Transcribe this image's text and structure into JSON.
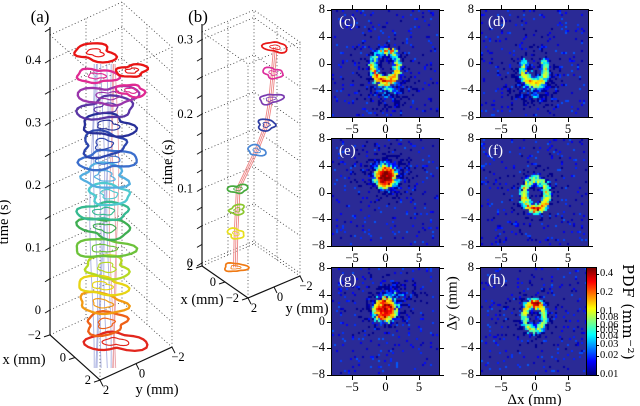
{
  "figure": {
    "background": "#ffffff",
    "heatmap_bg": "#2a2a96"
  },
  "chart_data": [
    {
      "id": "a",
      "type": "3d-contour-stack",
      "label": "(a)",
      "time_label": "time (s)",
      "x_label": "x (mm)",
      "y_label": "y (mm)",
      "time_ticks": [
        0,
        0.1,
        0.2,
        0.3,
        0.4
      ],
      "time_minor_step": 0.05,
      "time_range": [
        0,
        0.46
      ],
      "x_ticks": [
        -2,
        0,
        2
      ],
      "y_ticks": [
        2,
        0,
        -2
      ],
      "x_range": [
        -2,
        2
      ],
      "y_range": [
        -2,
        2
      ],
      "traj_colors": {
        "blue": "#a7afe0",
        "pink": "#e9a2a8"
      },
      "rings": [
        {
          "t": 0.005,
          "x": 0.35,
          "y": 0.0,
          "s": 1.0,
          "color": "#e2261d"
        },
        {
          "t": 0.035,
          "x": 0.1,
          "y": 0.35,
          "s": 0.92,
          "color": "#ee6017"
        },
        {
          "t": 0.065,
          "x": -0.05,
          "y": 0.45,
          "s": 0.95,
          "color": "#f29a12"
        },
        {
          "t": 0.095,
          "x": 0.0,
          "y": 0.5,
          "s": 0.9,
          "color": "#e7d414"
        },
        {
          "t": 0.125,
          "x": 0.15,
          "y": 0.35,
          "s": 0.95,
          "color": "#b5d922"
        },
        {
          "t": 0.155,
          "x": 0.05,
          "y": 0.45,
          "s": 1.0,
          "color": "#6cc23a"
        },
        {
          "t": 0.185,
          "x": 0.0,
          "y": 0.3,
          "s": 0.95,
          "color": "#3fae52"
        },
        {
          "t": 0.215,
          "x": 0.1,
          "y": 0.45,
          "s": 0.9,
          "color": "#35b990"
        },
        {
          "t": 0.24,
          "x": 0.15,
          "y": 0.2,
          "s": 0.88,
          "color": "#4fc9cf"
        },
        {
          "t": 0.268,
          "x": 0.0,
          "y": 0.35,
          "s": 1.0,
          "color": "#52aee0"
        },
        {
          "t": 0.295,
          "x": 0.1,
          "y": 0.25,
          "s": 1.0,
          "color": "#3b6ecc"
        },
        {
          "t": 0.32,
          "x": 0.0,
          "y": 0.4,
          "s": 1.0,
          "color": "#2c45ad"
        },
        {
          "t": 0.35,
          "x": 0.1,
          "y": 0.25,
          "s": 1.02,
          "color": "#272f98"
        },
        {
          "t": 0.378,
          "x": 0.1,
          "y": 0.3,
          "s": 1.05,
          "color": "#5a35a5"
        },
        {
          "t": 0.398,
          "x": 0.15,
          "y": 0.2,
          "s": 1.0,
          "color": "#9a35ab"
        },
        {
          "t": 0.412,
          "x": 0.95,
          "y": -0.45,
          "s": 0.55,
          "color": "#e02a92"
        },
        {
          "t": 0.425,
          "x": -0.35,
          "y": 0.55,
          "s": 0.72,
          "color": "#e02a92"
        },
        {
          "t": 0.443,
          "x": 0.95,
          "y": -0.5,
          "s": 0.58,
          "color": "#e81414"
        },
        {
          "t": 0.462,
          "x": -0.4,
          "y": 0.6,
          "s": 0.8,
          "color": "#e81414"
        }
      ]
    },
    {
      "id": "b",
      "type": "3d-contour-stack",
      "label": "(b)",
      "time_label": "time (s)",
      "x_label": "x (mm)",
      "y_label": "y (mm)",
      "time_ticks": [
        0,
        0.1,
        0.2,
        0.3
      ],
      "time_minor_step": 0.025,
      "time_range": [
        0,
        0.31
      ],
      "x_ticks": [
        2,
        0,
        -2
      ],
      "y_ticks": [
        2,
        0,
        -2
      ],
      "x_range": [
        -2,
        2
      ],
      "y_range": [
        -2,
        2
      ],
      "traj_colors": {
        "pink": "#ee8484"
      },
      "rings": [
        {
          "t": 0.0,
          "x": 0.8,
          "y": 0.5,
          "s": 1.0,
          "color": "#f07a14"
        },
        {
          "t": 0.045,
          "x": 0.8,
          "y": 0.45,
          "s": 0.9,
          "color": "#e7df1c"
        },
        {
          "t": 0.077,
          "x": 0.75,
          "y": 0.4,
          "s": 0.85,
          "color": "#8bc72e"
        },
        {
          "t": 0.105,
          "x": 0.72,
          "y": 0.35,
          "s": 0.9,
          "color": "#46a93c"
        },
        {
          "t": 0.155,
          "x": 0.2,
          "y": -0.6,
          "s": 0.95,
          "color": "#4a86d4"
        },
        {
          "t": 0.19,
          "x": -0.15,
          "y": -1.05,
          "s": 1.0,
          "color": "#2c3ba2"
        },
        {
          "t": 0.225,
          "x": -0.3,
          "y": -1.25,
          "s": 1.05,
          "color": "#7a3bb0"
        },
        {
          "t": 0.26,
          "x": -0.4,
          "y": -1.35,
          "s": 1.0,
          "color": "#dd2e9c"
        },
        {
          "t": 0.295,
          "x": -0.48,
          "y": -1.45,
          "s": 1.1,
          "color": "#e81717"
        }
      ]
    },
    {
      "id": "c",
      "type": "heatmap",
      "label": "(c)",
      "x_ticks": [
        -5,
        0,
        5
      ],
      "y_ticks": [
        8,
        4,
        0,
        -4,
        -8
      ],
      "range": [
        -8,
        8
      ],
      "clusters": [
        {
          "kind": "ring",
          "x": 0.0,
          "y": -0.4,
          "rx": 1.9,
          "ry": 2.3,
          "w": 0.18,
          "n": 680,
          "peak": 0.17,
          "base": 0.18,
          "peak_angle": 270
        },
        {
          "kind": "blob",
          "x": 0.5,
          "y": -3.9,
          "sx": 1.5,
          "sy": 1.3,
          "n": 230,
          "peak": 0.03
        },
        {
          "kind": "blob",
          "x": 0.4,
          "y": 1.8,
          "sx": 0.8,
          "sy": 0.35,
          "n": 26,
          "peak": 0.3
        },
        {
          "kind": "blob",
          "x": 0.0,
          "y": -1.2,
          "sx": 2.8,
          "sy": 2.8,
          "n": 130,
          "peak": 0.016
        }
      ]
    },
    {
      "id": "d",
      "type": "heatmap",
      "label": "(d)",
      "x_ticks": [
        -5,
        0,
        5
      ],
      "y_ticks": [
        8,
        4,
        0,
        -4,
        -8
      ],
      "range": [
        -8,
        8
      ],
      "clusters": [
        {
          "kind": "ring",
          "x": 0.0,
          "y": -0.9,
          "rx": 1.7,
          "ry": 2.1,
          "w": 0.2,
          "n": 620,
          "peak": 0.1,
          "base": 0.3,
          "peak_angle": 270,
          "a0": 140,
          "a1": 400
        },
        {
          "kind": "blob",
          "x": 0.2,
          "y": -3.6,
          "sx": 1.7,
          "sy": 1.5,
          "n": 270,
          "peak": 0.026
        },
        {
          "kind": "blob",
          "x": 0.0,
          "y": -1.5,
          "sx": 2.6,
          "sy": 3.0,
          "n": 110,
          "peak": 0.015
        }
      ]
    },
    {
      "id": "e",
      "type": "heatmap",
      "label": "(e)",
      "x_ticks": [
        -5,
        0,
        5
      ],
      "y_ticks": [
        8,
        4,
        0,
        -4,
        -8
      ],
      "range": [
        -8,
        8
      ],
      "clusters": [
        {
          "kind": "blob",
          "x": 0.0,
          "y": 2.4,
          "sx": 0.85,
          "sy": 0.9,
          "n": 700,
          "peak": 0.38
        },
        {
          "kind": "blob",
          "x": 0.0,
          "y": 2.6,
          "sx": 1.9,
          "sy": 1.7,
          "n": 230,
          "peak": 0.028
        },
        {
          "kind": "blob",
          "x": 0.3,
          "y": 3.3,
          "sx": 2.4,
          "sy": 1.7,
          "n": 100,
          "peak": 0.015
        }
      ]
    },
    {
      "id": "f",
      "type": "heatmap",
      "label": "(f)",
      "x_ticks": [
        -5,
        0,
        5
      ],
      "y_ticks": [
        8,
        4,
        0,
        -4,
        -8
      ],
      "range": [
        -8,
        8
      ],
      "clusters": [
        {
          "kind": "ring",
          "x": 0.15,
          "y": -0.3,
          "rx": 1.75,
          "ry": 2.25,
          "w": 0.2,
          "n": 640,
          "peak": 0.12,
          "base": 0.45,
          "peak_angle": 265
        },
        {
          "kind": "blob",
          "x": 0.4,
          "y": -2.4,
          "sx": 0.45,
          "sy": 0.3,
          "n": 40,
          "peak": 0.28
        },
        {
          "kind": "blob",
          "x": 0.1,
          "y": -0.2,
          "sx": 2.5,
          "sy": 2.9,
          "n": 120,
          "peak": 0.014
        }
      ]
    },
    {
      "id": "g",
      "type": "heatmap",
      "label": "(g)",
      "x_ticks": [
        -5,
        0,
        5
      ],
      "y_ticks": [
        8,
        4,
        0,
        -4,
        -8
      ],
      "range": [
        -8,
        8
      ],
      "clusters": [
        {
          "kind": "blob",
          "x": -0.1,
          "y": 1.8,
          "sx": 1.0,
          "sy": 1.0,
          "n": 560,
          "peak": 0.32
        },
        {
          "kind": "blob",
          "x": 1.1,
          "y": 3.6,
          "sx": 1.7,
          "sy": 1.2,
          "n": 210,
          "peak": 0.024
        },
        {
          "kind": "blob",
          "x": 0.3,
          "y": 2.2,
          "sx": 2.4,
          "sy": 2.0,
          "n": 130,
          "peak": 0.015
        }
      ]
    },
    {
      "id": "h",
      "type": "heatmap",
      "label": "(h)",
      "x_ticks": [
        -5,
        0,
        5
      ],
      "y_ticks": [
        8,
        4,
        0,
        -4,
        -8
      ],
      "range": [
        -8,
        8
      ],
      "xlabel": "Δx (mm)",
      "ylabel": "Δy (mm)",
      "clusters": [
        {
          "kind": "ring",
          "x": 0.0,
          "y": 0.7,
          "rx": 1.5,
          "ry": 2.0,
          "w": 0.2,
          "n": 600,
          "peak": 0.11,
          "base": 0.5,
          "peak_angle": 90
        },
        {
          "kind": "blob",
          "x": 0.15,
          "y": 2.6,
          "sx": 0.45,
          "sy": 0.35,
          "n": 55,
          "peak": 0.4
        },
        {
          "kind": "blob",
          "x": 0.0,
          "y": 0.8,
          "sx": 2.3,
          "sy": 2.7,
          "n": 110,
          "peak": 0.014
        }
      ]
    }
  ],
  "colorbar": {
    "label": "PDF (mm⁻²)",
    "ticks": [
      "0.4",
      "0.2",
      "0.1",
      "0.08",
      "0.06",
      "0.05",
      "0.04",
      "0.03",
      "0.02",
      "0.01"
    ],
    "range": [
      0.01,
      0.5
    ],
    "colormap": "jet",
    "scale": "log"
  }
}
